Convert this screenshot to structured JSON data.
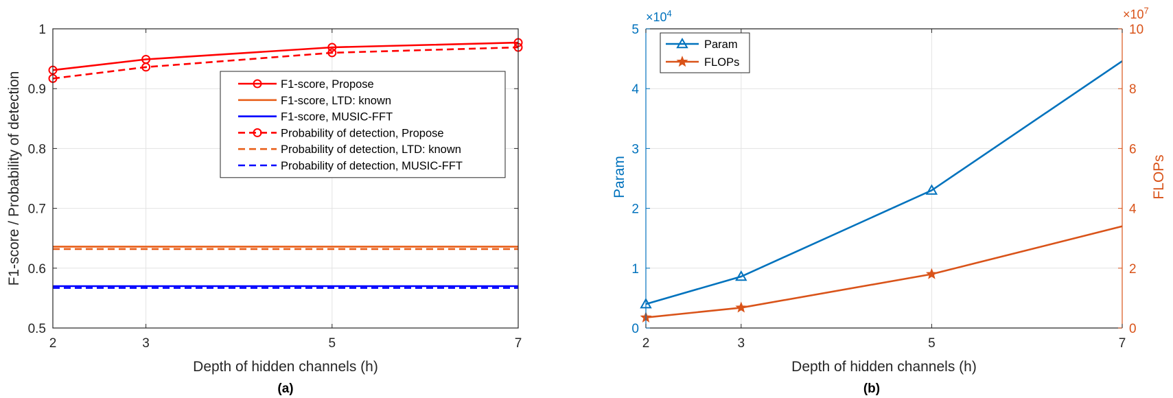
{
  "chart_data": [
    {
      "type": "line",
      "panel_label": "(a)",
      "xlabel": "Depth of hidden channels (h)",
      "ylabel": "F1-score / Probability of detection",
      "x_ticks": [
        2,
        3,
        5,
        7
      ],
      "y_ticks": [
        0.5,
        0.6,
        0.7,
        0.8,
        0.9,
        1
      ],
      "y_tick_labels": [
        "0.5",
        "0.6",
        "0.7",
        "0.8",
        "0.9",
        "1"
      ],
      "xlim": [
        2,
        7
      ],
      "ylim": [
        0.5,
        1.0
      ],
      "grid": true,
      "legend_position": "center-right",
      "x": [
        2,
        3,
        5,
        7
      ],
      "series": [
        {
          "name": "F1-score, Propose",
          "values": [
            0.931,
            0.949,
            0.969,
            0.977
          ],
          "color": "#ff0000",
          "dash": "solid",
          "marker": "circle"
        },
        {
          "name": "F1-score, LTD: known",
          "values": [
            0.636,
            0.636,
            0.636,
            0.636
          ],
          "color": "#e85f1a",
          "dash": "solid",
          "marker": "none"
        },
        {
          "name": "F1-score, MUSIC-FFT",
          "values": [
            0.57,
            0.57,
            0.57,
            0.57
          ],
          "color": "#0000ff",
          "dash": "solid",
          "marker": "none"
        },
        {
          "name": "Probability of detection, Propose",
          "values": [
            0.917,
            0.936,
            0.96,
            0.969
          ],
          "color": "#ff0000",
          "dash": "dashed",
          "marker": "circle"
        },
        {
          "name": "Probability of detection, LTD: known",
          "values": [
            0.632,
            0.632,
            0.632,
            0.632
          ],
          "color": "#e85f1a",
          "dash": "dashed",
          "marker": "none"
        },
        {
          "name": "Probability of detection, MUSIC-FFT",
          "values": [
            0.567,
            0.567,
            0.567,
            0.567
          ],
          "color": "#0000ff",
          "dash": "dashed",
          "marker": "none"
        }
      ]
    },
    {
      "type": "line",
      "panel_label": "(b)",
      "xlabel": "Depth of hidden channels (h)",
      "ylabel_left": "Param",
      "ylabel_right": "FLOPs",
      "x_ticks": [
        2,
        3,
        5,
        7
      ],
      "y_left_ticks": [
        0,
        1,
        2,
        3,
        4,
        5
      ],
      "y_left_exponent": "×10",
      "y_left_exponent_power": "4",
      "y_right_ticks": [
        0,
        2,
        4,
        6,
        8,
        10
      ],
      "y_right_exponent": "×10",
      "y_right_exponent_power": "7",
      "xlim": [
        2,
        7
      ],
      "ylim_left": [
        0,
        50000
      ],
      "ylim_right": [
        0,
        100000000
      ],
      "grid": true,
      "legend_position": "top-left",
      "left_axis_color": "#0072bd",
      "right_axis_color": "#d95319",
      "x": [
        2,
        3,
        5,
        7
      ],
      "series": [
        {
          "name": "Param",
          "axis": "left",
          "values": [
            4000,
            8600,
            23000,
            44600
          ],
          "color": "#0072bd",
          "marker": "triangle"
        },
        {
          "name": "FLOPs",
          "axis": "right",
          "values": [
            3500000,
            6800000,
            18000000,
            34000000
          ],
          "color": "#d95319",
          "marker": "star"
        }
      ]
    }
  ]
}
